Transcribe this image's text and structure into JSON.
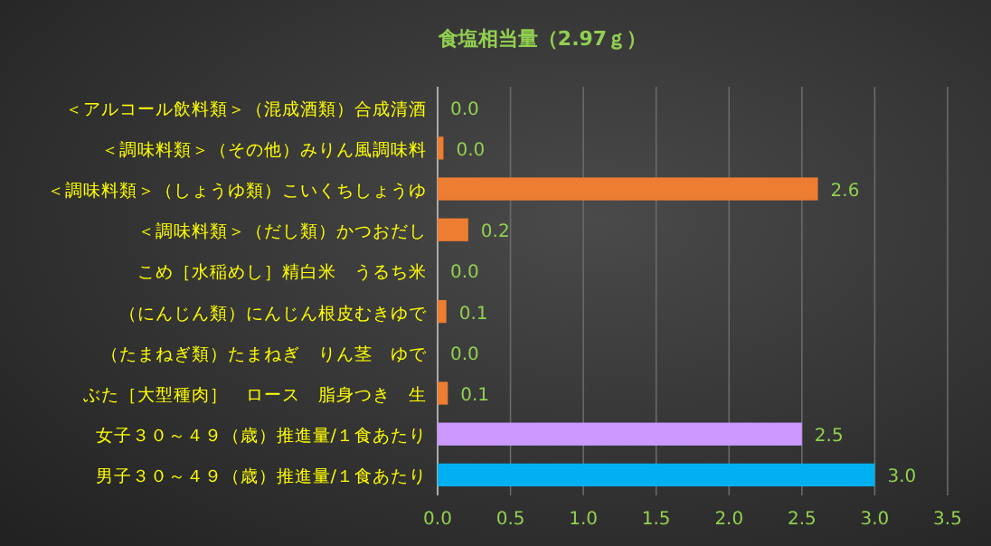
{
  "chart_data": {
    "type": "bar",
    "orientation": "horizontal",
    "title": "食塩相当量（2.97ｇ）",
    "categories": [
      "＜アルコール飲料類＞（混成酒類）合成清酒",
      "＜調味料類＞（その他）みりん風調味料",
      "＜調味料類＞（しょうゆ類）こいくちしょうゆ",
      "＜調味料類＞（だし類）かつおだし",
      "こめ［水稲めし］精白米　うるち米",
      "（にんじん類）にんじん根皮むきゆで",
      "（たまねぎ類）たまねぎ　りん茎　ゆで",
      "ぶた［大型種肉］　ロース　脂身つき　生",
      "女子３０～４９（歳）推進量/１食あたり",
      "男子３０～４９（歳）推進量/１食あたり"
    ],
    "values": [
      0,
      0.04,
      2.61,
      0.21,
      0,
      0.06,
      0,
      0.07,
      2.5,
      3.0
    ],
    "value_labels": [
      "0.0",
      "0.0",
      "2.6",
      "0.2",
      "0.0",
      "0.1",
      "0.0",
      "0.1",
      "2.5",
      "3.0"
    ],
    "colors": [
      "#ed7d31",
      "#ed7d31",
      "#ed7d31",
      "#ed7d31",
      "#ed7d31",
      "#ed7d31",
      "#ed7d31",
      "#ed7d31",
      "#cc99ff",
      "#00b0f0"
    ],
    "xlim": [
      0,
      3.5
    ],
    "xticks": [
      {
        "value": 0,
        "label": "0.0"
      },
      {
        "value": 0.5,
        "label": "0.5"
      },
      {
        "value": 1,
        "label": "1.0"
      },
      {
        "value": 1.5,
        "label": "1.5"
      },
      {
        "value": 2,
        "label": "2.0"
      },
      {
        "value": 2.5,
        "label": "2.5"
      },
      {
        "value": 3,
        "label": "3.0"
      },
      {
        "value": 3.5,
        "label": "3.5"
      }
    ],
    "grid": "x"
  }
}
